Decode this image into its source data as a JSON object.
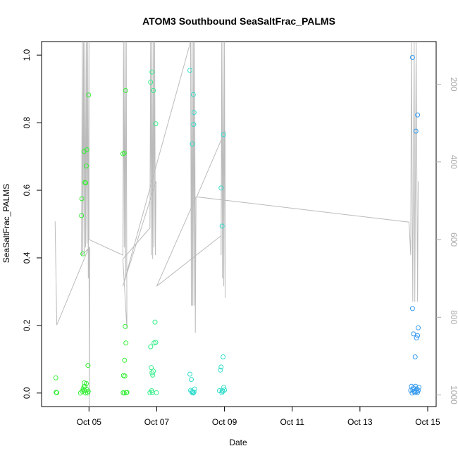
{
  "chart_data": {
    "type": "scatter",
    "title": "ATOM3 Southbound SeaSaltFrac_PALMS",
    "xlabel": "Date",
    "ylabel": "SeaSaltFrac_PALMS",
    "x_ticks": [
      {
        "day": 5,
        "label": "Oct 05"
      },
      {
        "day": 7,
        "label": "Oct 07"
      },
      {
        "day": 9,
        "label": "Oct 09"
      },
      {
        "day": 11,
        "label": "Oct 11"
      },
      {
        "day": 13,
        "label": "Oct 13"
      },
      {
        "day": 15,
        "label": "Oct 15"
      }
    ],
    "xlim": [
      3.6,
      15.25
    ],
    "ylim": [
      -0.04,
      1.04
    ],
    "y_ticks": [
      "0.0",
      "0.2",
      "0.4",
      "0.6",
      "0.8",
      "1.0"
    ],
    "right_axis": {
      "ticks": [
        "200",
        "400",
        "600",
        "800",
        "1000"
      ],
      "values": [
        200,
        400,
        600,
        800,
        1000
      ],
      "lim": [
        1030,
        90
      ],
      "color": "#aaaaaa"
    },
    "colors": {
      "points": [
        "#33ee33",
        "#33ee88",
        "#33ddcc",
        "#3399ee"
      ],
      "altitude_line": "#bbbbbb"
    },
    "series": [
      {
        "values": [
          [
            4.02,
            0.045
          ],
          [
            4.03,
            0.002
          ],
          [
            4.05,
            0.001
          ],
          [
            4.78,
            0.525
          ],
          [
            4.79,
            0.575
          ],
          [
            4.82,
            0.412
          ],
          [
            4.85,
            0.715
          ],
          [
            4.88,
            0.623
          ],
          [
            4.9,
            0.622
          ],
          [
            4.92,
            0.672
          ],
          [
            4.94,
            0.72
          ],
          [
            4.99,
            0.882
          ],
          [
            4.75,
            0.0
          ],
          [
            4.8,
            0.005
          ],
          [
            4.83,
            0.012
          ],
          [
            4.86,
            0.03
          ],
          [
            4.88,
            0.02
          ],
          [
            4.9,
            0.0
          ],
          [
            4.92,
            0.028
          ],
          [
            4.94,
            0.01
          ],
          [
            4.96,
            0.0
          ],
          [
            4.97,
            0.082
          ],
          [
            4.98,
            0.005
          ],
          [
            4.85,
            0.018
          ],
          [
            4.87,
            0.008
          ]
        ]
      },
      {
        "values": [
          [
            6.0,
            0.708
          ],
          [
            6.04,
            0.71
          ],
          [
            6.08,
            0.895
          ],
          [
            6.02,
            0.052
          ],
          [
            6.04,
            0.0
          ],
          [
            6.05,
            0.097
          ],
          [
            6.07,
            0.197
          ],
          [
            6.09,
            0.148
          ],
          [
            6.1,
            0.001
          ],
          [
            6.12,
            0.002
          ],
          [
            6.01,
            0.001
          ],
          [
            6.06,
            0.05
          ]
        ]
      },
      {
        "values": [
          [
            6.82,
            0.92
          ],
          [
            6.86,
            0.95
          ],
          [
            6.9,
            0.895
          ],
          [
            6.97,
            0.797
          ],
          [
            6.8,
            0.001
          ],
          [
            6.82,
            0.137
          ],
          [
            6.84,
            0.075
          ],
          [
            6.86,
            0.06
          ],
          [
            6.88,
            0.053
          ],
          [
            6.9,
            0.065
          ],
          [
            6.92,
            0.148
          ],
          [
            6.95,
            0.21
          ],
          [
            6.97,
            0.15
          ],
          [
            6.99,
            0.001
          ],
          [
            6.85,
            0.007
          ],
          [
            6.87,
            0.002
          ]
        ]
      },
      {
        "values": [
          [
            7.98,
            0.955
          ],
          [
            8.05,
            0.737
          ],
          [
            8.08,
            0.883
          ],
          [
            8.1,
            0.83
          ],
          [
            8.09,
            0.795
          ],
          [
            7.98,
            0.056
          ],
          [
            8.0,
            0.008
          ],
          [
            8.02,
            0.04
          ],
          [
            8.04,
            0.005
          ],
          [
            8.06,
            0.002
          ],
          [
            8.08,
            0.0
          ],
          [
            8.1,
            0.003
          ],
          [
            8.12,
            0.012
          ],
          [
            8.05,
            0.001
          ]
        ]
      },
      {
        "values": [
          [
            8.9,
            0.607
          ],
          [
            8.93,
            0.494
          ],
          [
            8.97,
            0.765
          ],
          [
            8.85,
            0.007
          ],
          [
            8.88,
            0.068
          ],
          [
            8.9,
            0.077
          ],
          [
            8.93,
            0.007
          ],
          [
            8.96,
            0.107
          ],
          [
            8.98,
            0.017
          ],
          [
            9.0,
            0.009
          ],
          [
            8.92,
            0.001
          ],
          [
            8.95,
            0.005
          ]
        ]
      },
      {
        "values": [
          [
            14.55,
            0.993
          ],
          [
            14.65,
            0.775
          ],
          [
            14.7,
            0.823
          ],
          [
            14.55,
            0.25
          ],
          [
            14.58,
            0.175
          ],
          [
            14.63,
            0.107
          ],
          [
            14.67,
            0.163
          ],
          [
            14.7,
            0.17
          ],
          [
            14.72,
            0.193
          ],
          [
            14.5,
            0.008
          ],
          [
            14.52,
            0.02
          ],
          [
            14.54,
            0.0
          ],
          [
            14.56,
            0.01
          ],
          [
            14.58,
            0.015
          ],
          [
            14.6,
            0.005
          ],
          [
            14.62,
            0.001
          ],
          [
            14.64,
            0.02
          ],
          [
            14.66,
            0.004
          ],
          [
            14.68,
            0.012
          ],
          [
            14.7,
            0.002
          ],
          [
            14.72,
            0.008
          ],
          [
            14.74,
            0.017
          ]
        ]
      }
    ],
    "altitude": [
      [
        4.0,
        553
      ],
      [
        4.05,
        820
      ],
      [
        5.0,
        620
      ],
      [
        5.01,
        1030
      ],
      [
        5.02,
        620
      ],
      [
        4.78,
        640
      ],
      [
        4.8,
        90
      ],
      [
        4.82,
        640
      ],
      [
        4.84,
        90
      ],
      [
        4.86,
        630
      ],
      [
        4.88,
        90
      ],
      [
        4.9,
        620
      ],
      [
        4.92,
        90
      ],
      [
        4.94,
        610
      ],
      [
        4.96,
        90
      ],
      [
        4.98,
        700
      ],
      [
        5.0,
        90
      ],
      [
        5.0,
        600
      ],
      [
        6.0,
        640
      ],
      [
        6.02,
        90
      ],
      [
        6.04,
        620
      ],
      [
        6.06,
        90
      ],
      [
        6.08,
        700
      ],
      [
        6.1,
        90
      ],
      [
        6.12,
        830
      ],
      [
        6.0,
        650
      ],
      [
        6.8,
        570
      ],
      [
        6.82,
        90
      ],
      [
        6.84,
        640
      ],
      [
        6.86,
        90
      ],
      [
        6.88,
        650
      ],
      [
        6.9,
        90
      ],
      [
        6.92,
        620
      ],
      [
        6.94,
        90
      ],
      [
        6.96,
        640
      ],
      [
        6.98,
        450
      ],
      [
        6.0,
        720
      ],
      [
        8.0,
        90
      ],
      [
        8.02,
        770
      ],
      [
        8.04,
        90
      ],
      [
        8.06,
        770
      ],
      [
        8.08,
        90
      ],
      [
        8.1,
        770
      ],
      [
        8.12,
        90
      ],
      [
        8.14,
        840
      ],
      [
        8.16,
        490
      ],
      [
        7.0,
        720
      ],
      [
        8.9,
        590
      ],
      [
        8.9,
        640
      ],
      [
        8.92,
        90
      ],
      [
        8.94,
        700
      ],
      [
        8.96,
        90
      ],
      [
        8.98,
        720
      ],
      [
        9.0,
        90
      ],
      [
        9.02,
        750
      ],
      [
        9.02,
        320
      ],
      [
        8.18,
        490
      ],
      [
        14.45,
        555
      ],
      [
        14.5,
        640
      ],
      [
        14.52,
        90
      ],
      [
        14.56,
        760
      ],
      [
        14.6,
        90
      ],
      [
        14.62,
        760
      ],
      [
        14.66,
        90
      ],
      [
        14.7,
        760
      ],
      [
        14.72,
        450
      ]
    ]
  }
}
